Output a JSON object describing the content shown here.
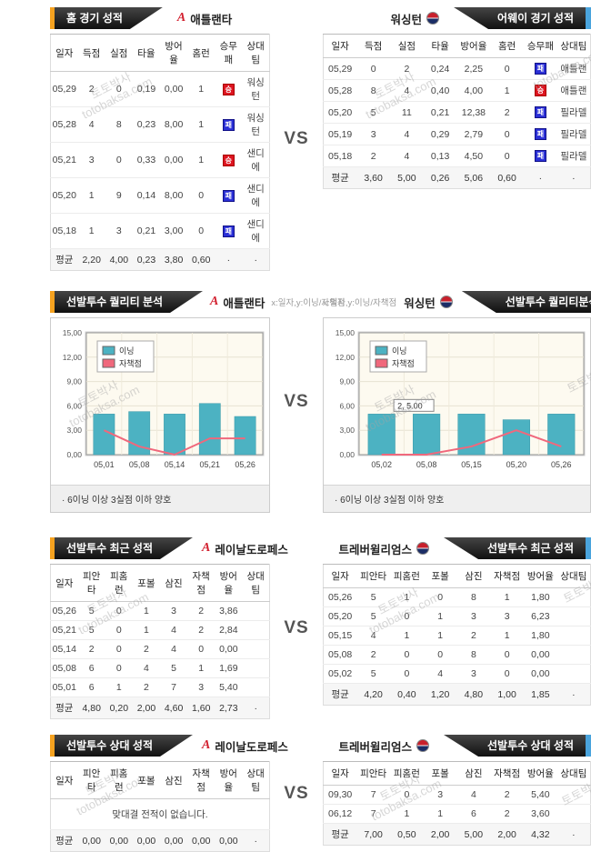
{
  "page": {
    "vs_label": "VS",
    "watermark_top": "토토박사",
    "watermark_bottom": "totobaksa.com"
  },
  "colors": {
    "accent_orange": "#f6a21f",
    "accent_blue": "#4aa4dd",
    "banner_dark": "#101010",
    "win_red": "#dd1420",
    "loss_blue": "#2a2fd6",
    "bar_teal": "#4cb2c2",
    "line_pink": "#f0687c",
    "plot_bg": "#fdfaf0"
  },
  "game_tables": {
    "left": {
      "banner": "홈 경기 성적",
      "team": "애틀랜타",
      "team_icon": "atlanta-logo",
      "columns": [
        "일자",
        "득점",
        "실점",
        "타율",
        "방어율",
        "홈런",
        "승무패",
        "상대팀"
      ],
      "rows": [
        [
          "05,29",
          "2",
          "0",
          "0,19",
          "0,00",
          "1",
          {
            "badge": "승",
            "type": "win"
          },
          "워싱턴"
        ],
        [
          "05,28",
          "4",
          "8",
          "0,23",
          "8,00",
          "1",
          {
            "badge": "패",
            "type": "loss"
          },
          "워싱턴"
        ],
        [
          "05,21",
          "3",
          "0",
          "0,33",
          "0,00",
          "1",
          {
            "badge": "승",
            "type": "win"
          },
          "샌디에"
        ],
        [
          "05,20",
          "1",
          "9",
          "0,14",
          "8,00",
          "0",
          {
            "badge": "패",
            "type": "loss"
          },
          "샌디에"
        ],
        [
          "05,18",
          "1",
          "3",
          "0,21",
          "3,00",
          "0",
          {
            "badge": "패",
            "type": "loss"
          },
          "샌디에"
        ]
      ],
      "avg_row": [
        "평균",
        "2,20",
        "4,00",
        "0,23",
        "3,80",
        "0,60",
        "·",
        "·"
      ]
    },
    "right": {
      "banner": "어웨이 경기 성적",
      "team": "워싱턴",
      "team_icon": "washington-logo",
      "columns": [
        "일자",
        "득점",
        "실점",
        "타율",
        "방어율",
        "홈런",
        "승무패",
        "상대팀"
      ],
      "rows": [
        [
          "05,29",
          "0",
          "2",
          "0,24",
          "2,25",
          "0",
          {
            "badge": "패",
            "type": "loss"
          },
          "애틀랜"
        ],
        [
          "05,28",
          "8",
          "4",
          "0,40",
          "4,00",
          "1",
          {
            "badge": "승",
            "type": "win"
          },
          "애틀랜"
        ],
        [
          "05,20",
          "5",
          "11",
          "0,21",
          "12,38",
          "2",
          {
            "badge": "패",
            "type": "loss"
          },
          "필라델"
        ],
        [
          "05,19",
          "3",
          "4",
          "0,29",
          "2,79",
          "0",
          {
            "badge": "패",
            "type": "loss"
          },
          "필라델"
        ],
        [
          "05,18",
          "2",
          "4",
          "0,13",
          "4,50",
          "0",
          {
            "badge": "패",
            "type": "loss"
          },
          "필라델"
        ]
      ],
      "avg_row": [
        "평균",
        "3,60",
        "5,00",
        "0,26",
        "5,06",
        "0,60",
        "·",
        "·"
      ]
    }
  },
  "quality_charts": {
    "left": {
      "banner": "선발투수 퀄리티 분석",
      "team": "애틀랜타",
      "team_icon": "atlanta-logo",
      "axis_hint": "x:일자,y:이닝/자책점",
      "note": "· 6이닝 이상 3실점 이하 양호",
      "chart": {
        "type": "bar+line",
        "categories": [
          "05,01",
          "05,08",
          "05,14",
          "05,21",
          "05,26"
        ],
        "yticks": [
          "15,00",
          "12,00",
          "9,00",
          "6,00",
          "3,00",
          "0,00"
        ],
        "ylim": [
          0,
          15
        ],
        "legend": [
          "이닝",
          "자책점"
        ],
        "bars": [
          5.0,
          5.3,
          5.0,
          6.3,
          4.7
        ],
        "line": [
          3.0,
          1.0,
          0.0,
          2.0,
          2.0
        ]
      }
    },
    "right": {
      "banner": "선발투수 퀄리티분석",
      "team": "워싱턴",
      "team_icon": "washington-logo",
      "axis_hint": "x:일자,y:이닝/자책점",
      "note": "· 6이닝 이상 3실점 이하 양호",
      "chart": {
        "type": "bar+line",
        "categories": [
          "05,02",
          "05,08",
          "05,15",
          "05,20",
          "05,26"
        ],
        "yticks": [
          "15,00",
          "12,00",
          "9,00",
          "6,00",
          "3,00",
          "0,00"
        ],
        "ylim": [
          0,
          15
        ],
        "legend": [
          "이닝",
          "자책점"
        ],
        "bars": [
          5.0,
          5.0,
          5.0,
          4.3,
          5.0
        ],
        "line": [
          0.0,
          0.0,
          1.0,
          3.0,
          1.0
        ],
        "tooltip": {
          "text": "2, 5.00",
          "index": 1
        }
      }
    }
  },
  "recent_tables": {
    "left": {
      "banner": "선발투수 최근 성적",
      "team": "레이날도로페스",
      "team_icon": "atlanta-logo",
      "columns": [
        "일자",
        "피안타",
        "피홈런",
        "포볼",
        "삼진",
        "자책점",
        "방어율",
        "상대팀"
      ],
      "rows": [
        [
          "05,26",
          "5",
          "0",
          "1",
          "3",
          "2",
          "3,86",
          ""
        ],
        [
          "05,21",
          "5",
          "0",
          "1",
          "4",
          "2",
          "2,84",
          ""
        ],
        [
          "05,14",
          "2",
          "0",
          "2",
          "4",
          "0",
          "0,00",
          ""
        ],
        [
          "05,08",
          "6",
          "0",
          "4",
          "5",
          "1",
          "1,69",
          ""
        ],
        [
          "05,01",
          "6",
          "1",
          "2",
          "7",
          "3",
          "5,40",
          ""
        ]
      ],
      "avg_row": [
        "평균",
        "4,80",
        "0,20",
        "2,00",
        "4,60",
        "1,60",
        "2,73",
        "·"
      ]
    },
    "right": {
      "banner": "선발투수 최근 성적",
      "team": "트레버윌리엄스",
      "team_icon": "washington-logo",
      "columns": [
        "일자",
        "피안타",
        "피홈런",
        "포볼",
        "삼진",
        "자책점",
        "방어율",
        "상대팀"
      ],
      "rows": [
        [
          "05,26",
          "5",
          "1",
          "0",
          "8",
          "1",
          "1,80",
          ""
        ],
        [
          "05,20",
          "5",
          "0",
          "1",
          "3",
          "3",
          "6,23",
          ""
        ],
        [
          "05,15",
          "4",
          "1",
          "1",
          "2",
          "1",
          "1,80",
          ""
        ],
        [
          "05,08",
          "2",
          "0",
          "0",
          "8",
          "0",
          "0,00",
          ""
        ],
        [
          "05,02",
          "5",
          "0",
          "4",
          "3",
          "0",
          "0,00",
          ""
        ]
      ],
      "avg_row": [
        "평균",
        "4,20",
        "0,40",
        "1,20",
        "4,80",
        "1,00",
        "1,85",
        "·"
      ]
    }
  },
  "h2h_tables": {
    "left": {
      "banner": "선발투수 상대 성적",
      "team": "레이날도로페스",
      "team_icon": "atlanta-logo",
      "columns": [
        "일자",
        "피안타",
        "피홈런",
        "포볼",
        "삼진",
        "자책점",
        "방어율",
        "상대팀"
      ],
      "rows": [],
      "empty_message": "맞대결 전적이 없습니다.",
      "avg_row": [
        "평균",
        "0,00",
        "0,00",
        "0,00",
        "0,00",
        "0,00",
        "0,00",
        "·"
      ]
    },
    "right": {
      "banner": "선발투수 상대 성적",
      "team": "트레버윌리엄스",
      "team_icon": "washington-logo",
      "columns": [
        "일자",
        "피안타",
        "피홈런",
        "포볼",
        "삼진",
        "자책점",
        "방어율",
        "상대팀"
      ],
      "rows": [
        [
          "09,30",
          "7",
          "0",
          "3",
          "4",
          "2",
          "5,40",
          ""
        ],
        [
          "06,12",
          "7",
          "1",
          "1",
          "6",
          "2",
          "3,60",
          ""
        ]
      ],
      "avg_row": [
        "평균",
        "7,00",
        "0,50",
        "2,00",
        "5,00",
        "2,00",
        "4,32",
        "·"
      ]
    }
  }
}
